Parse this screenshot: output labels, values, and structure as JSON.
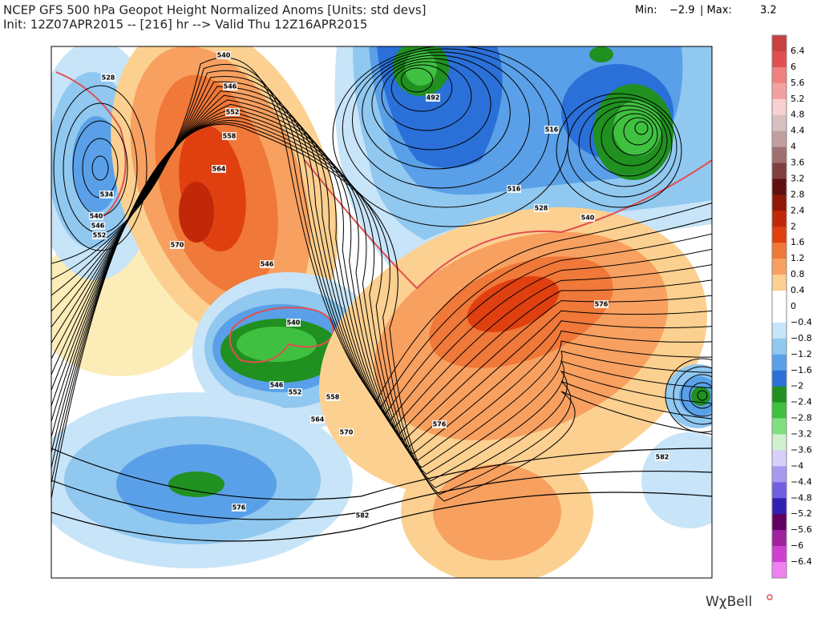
{
  "header": {
    "title": "NCEP GFS 500 hPa Geopot Height Normalized Anoms [Units: std devs]",
    "subtitle": "Init: 12Z07APR2015 -- [216] hr --> Valid Thu 12Z16APR2015",
    "min_label": "Min:",
    "min_value": "−2.9",
    "max_label": "| Max:",
    "max_value": "3.2"
  },
  "colorbar": {
    "labels": [
      "6.4",
      "6",
      "5.6",
      "5.2",
      "4.8",
      "4.4",
      "4",
      "3.6",
      "3.2",
      "2.8",
      "2.4",
      "2",
      "1.6",
      "1.2",
      "0.8",
      "0.4",
      "0",
      "−0.4",
      "−0.8",
      "−1.2",
      "−1.6",
      "−2",
      "−2.4",
      "−2.8",
      "−3.2",
      "−3.6",
      "−4",
      "−4.4",
      "−4.8",
      "−5.2",
      "−5.6",
      "−6",
      "−6.4"
    ],
    "colors": [
      "#c84040",
      "#e05050",
      "#f08080",
      "#f4a0a0",
      "#f8d0d0",
      "#d8c0c0",
      "#c0a0a0",
      "#a07070",
      "#804040",
      "#601010",
      "#901808",
      "#c02808",
      "#e04010",
      "#f07838",
      "#f8a060",
      "#fcd090",
      "#ffffff",
      "#ffffff",
      "#c8e4f8",
      "#90c8f0",
      "#5aa0e8",
      "#2a70d8",
      "#209020",
      "#40c040",
      "#80e080",
      "#d0f0d0",
      "#d8d0f8",
      "#a898f0",
      "#7060e0",
      "#3020b0",
      "#600060",
      "#a020a0",
      "#d040d0",
      "#f080f0"
    ]
  },
  "map": {
    "contour_labels": [
      "540",
      "546",
      "552",
      "558",
      "564",
      "570",
      "528",
      "534",
      "540",
      "546",
      "552",
      "492",
      "516",
      "516",
      "528",
      "540",
      "546",
      "540",
      "546",
      "552",
      "558",
      "564",
      "570",
      "576",
      "576",
      "582",
      "576",
      "582"
    ]
  },
  "brand": "WχBell"
}
